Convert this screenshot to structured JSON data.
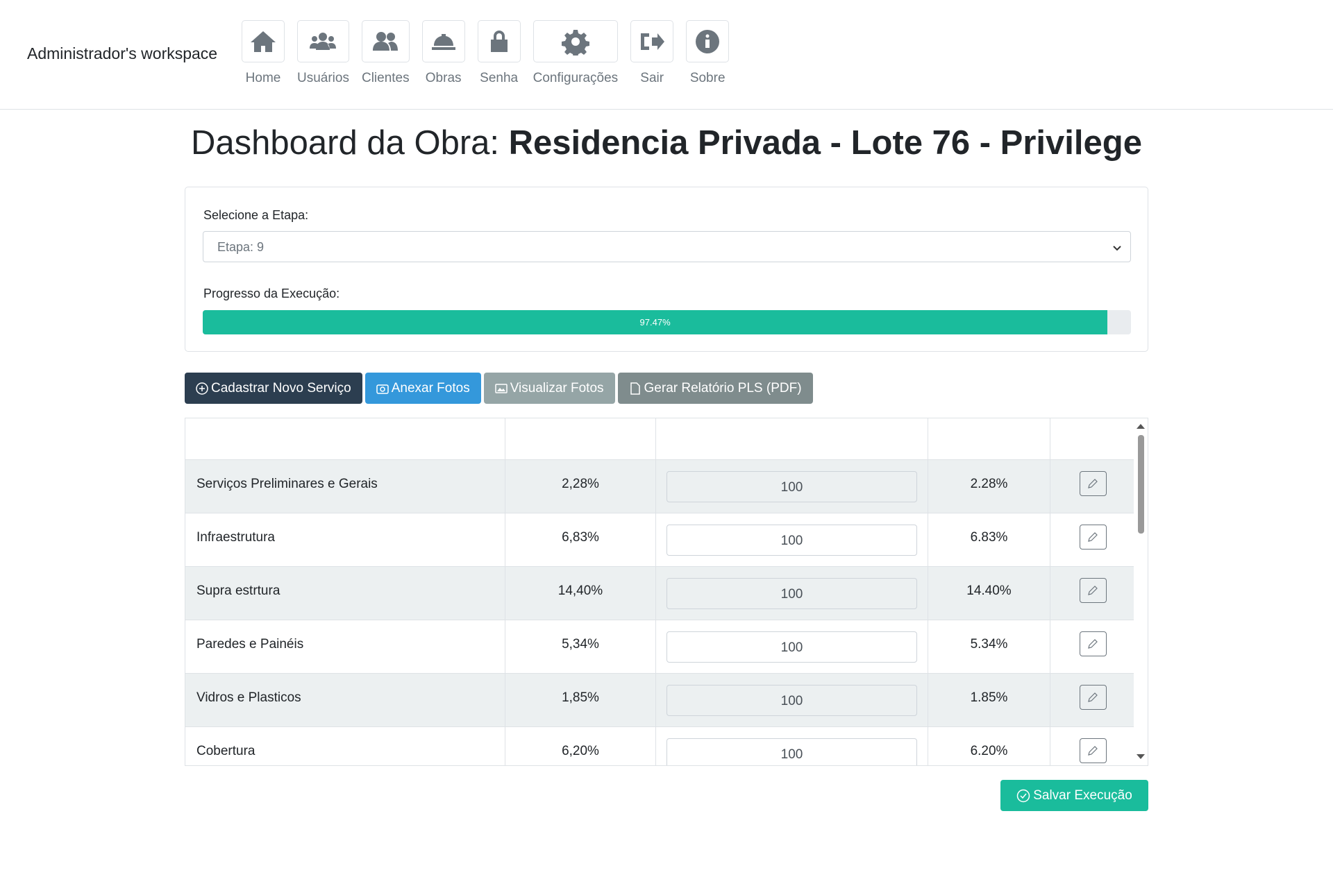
{
  "header": {
    "workspace": "Administrador's workspace",
    "nav": [
      "Home",
      "Usuários",
      "Clientes",
      "Obras",
      "Senha",
      "Configurações",
      "Sair",
      "Sobre"
    ]
  },
  "title": {
    "prefix": "Dashboard da Obra:",
    "name": "Residencia Privada - Lote 76 - Privilege"
  },
  "stage": {
    "label": "Selecione a Etapa:",
    "selected": "Etapa: 9"
  },
  "progress": {
    "label": "Progresso da Execução:",
    "value": 97.47,
    "value_label": "97.47%"
  },
  "buttons": [
    "Cadastrar Novo Serviço",
    "Anexar Fotos",
    "Visualizar Fotos",
    "Gerar Relatório PLS (PDF)"
  ],
  "table": {
    "rows": [
      [
        "Serviços Preliminares e Gerais",
        "2,28%",
        "100",
        "2.28%"
      ],
      [
        "Infraestrutura",
        "6,83%",
        "100",
        "6.83%"
      ],
      [
        "Supra estrtura",
        "14,40%",
        "100",
        "14.40%"
      ],
      [
        "Paredes e Painéis",
        "5,34%",
        "100",
        "5.34%"
      ],
      [
        "Vidros e Plasticos",
        "1,85%",
        "100",
        "1.85%"
      ],
      [
        "Cobertura",
        "6,20%",
        "100",
        "6.20%"
      ]
    ]
  },
  "save": "Salvar Execução"
}
